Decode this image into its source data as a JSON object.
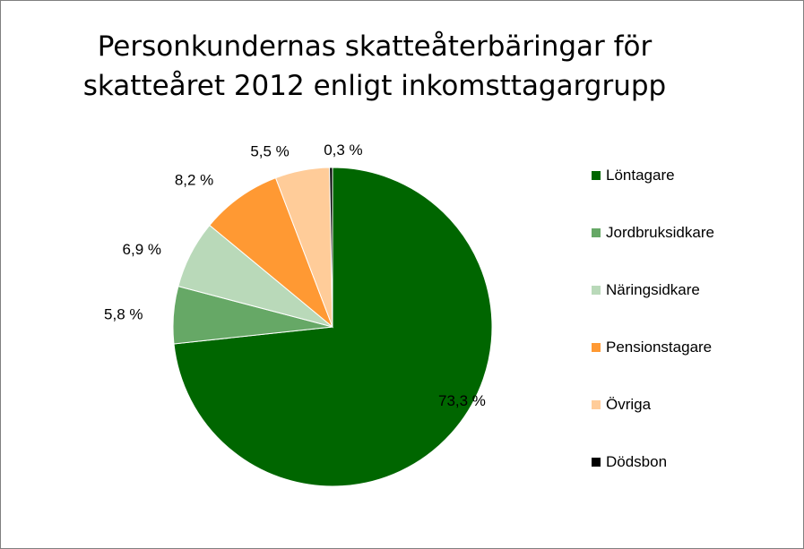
{
  "chart_data": {
    "type": "pie",
    "title_line1": "Personkundernas skatteåterbäringar för",
    "title_line2": "skatteåret 2012 enligt inkomsttagargrupp",
    "slices": [
      {
        "name": "Löntagare",
        "value": 73.3,
        "label": "73,3 %",
        "color": "#006600"
      },
      {
        "name": "Jordbruksidkare",
        "value": 5.8,
        "label": "5,8 %",
        "color": "#66A866"
      },
      {
        "name": "Näringsidkare",
        "value": 6.9,
        "label": "6,9 %",
        "color": "#B9D9B9"
      },
      {
        "name": "Pensionstagare",
        "value": 8.2,
        "label": "8,2 %",
        "color": "#FF9933"
      },
      {
        "name": "Övriga",
        "value": 5.5,
        "label": "5,5 %",
        "color": "#FFCC99"
      },
      {
        "name": "Dödsbon",
        "value": 0.3,
        "label": "0,3 %",
        "color": "#000000"
      }
    ],
    "start": "12 o'clock",
    "direction": "clockwise",
    "legend_position": "right"
  }
}
